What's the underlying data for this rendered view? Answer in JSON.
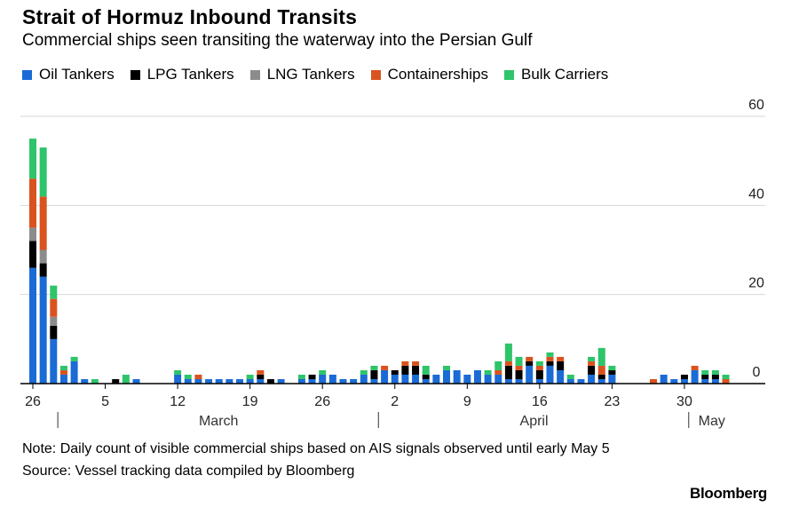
{
  "title": "Strait of Hormuz Inbound Transits",
  "subtitle": "Commercial ships seen transiting the waterway into the Persian Gulf",
  "note": "Note: Daily count of visible commercial ships based on AIS signals observed until early May 5",
  "source": "Source: Vessel tracking data compiled by Bloomberg",
  "brand": "Bloomberg",
  "chart_data": {
    "type": "bar",
    "stacked": true,
    "title": "Strait of Hormuz Inbound Transits",
    "ylim": [
      0,
      60
    ],
    "y_ticks": [
      0,
      20,
      40,
      60
    ],
    "y_axis_side": "right",
    "grid": true,
    "legend_position": "top",
    "x_tick_labels": [
      "26",
      "5",
      "12",
      "19",
      "26",
      "2",
      "9",
      "16",
      "23",
      "30"
    ],
    "x_tick_dates": [
      "2025-02-26",
      "2025-03-05",
      "2025-03-12",
      "2025-03-19",
      "2025-03-26",
      "2025-04-02",
      "2025-04-09",
      "2025-04-16",
      "2025-04-23",
      "2025-04-30"
    ],
    "month_labels": [
      {
        "label": "March",
        "start": "2025-03-01"
      },
      {
        "label": "April",
        "start": "2025-04-01"
      },
      {
        "label": "May",
        "start": "2025-05-01"
      }
    ],
    "categories": [
      "2025-02-26",
      "2025-02-27",
      "2025-02-28",
      "2025-03-01",
      "2025-03-02",
      "2025-03-03",
      "2025-03-04",
      "2025-03-05",
      "2025-03-06",
      "2025-03-07",
      "2025-03-08",
      "2025-03-09",
      "2025-03-10",
      "2025-03-11",
      "2025-03-12",
      "2025-03-13",
      "2025-03-14",
      "2025-03-15",
      "2025-03-16",
      "2025-03-17",
      "2025-03-18",
      "2025-03-19",
      "2025-03-20",
      "2025-03-21",
      "2025-03-22",
      "2025-03-23",
      "2025-03-24",
      "2025-03-25",
      "2025-03-26",
      "2025-03-27",
      "2025-03-28",
      "2025-03-29",
      "2025-03-30",
      "2025-03-31",
      "2025-04-01",
      "2025-04-02",
      "2025-04-03",
      "2025-04-04",
      "2025-04-05",
      "2025-04-06",
      "2025-04-07",
      "2025-04-08",
      "2025-04-09",
      "2025-04-10",
      "2025-04-11",
      "2025-04-12",
      "2025-04-13",
      "2025-04-14",
      "2025-04-15",
      "2025-04-16",
      "2025-04-17",
      "2025-04-18",
      "2025-04-19",
      "2025-04-20",
      "2025-04-21",
      "2025-04-22",
      "2025-04-23",
      "2025-04-24",
      "2025-04-25",
      "2025-04-26",
      "2025-04-27",
      "2025-04-28",
      "2025-04-29",
      "2025-04-30",
      "2025-05-01",
      "2025-05-02",
      "2025-05-03",
      "2025-05-04"
    ],
    "series": [
      {
        "name": "Oil Tankers",
        "color": "#1a6bd6",
        "values": [
          26,
          24,
          10,
          2,
          5,
          1,
          0,
          0,
          0,
          0,
          1,
          0,
          0,
          0,
          2,
          1,
          1,
          1,
          1,
          1,
          1,
          1,
          1,
          0,
          1,
          0,
          1,
          1,
          2,
          2,
          1,
          1,
          2,
          1,
          3,
          2,
          2,
          2,
          1,
          2,
          3,
          3,
          2,
          3,
          2,
          2,
          1,
          1,
          4,
          1,
          4,
          3,
          1,
          1,
          2,
          1,
          2,
          0,
          0,
          0,
          0,
          2,
          1,
          1,
          3,
          1,
          1,
          0
        ]
      },
      {
        "name": "LPG Tankers",
        "color": "#000000",
        "values": [
          6,
          3,
          3,
          0,
          0,
          0,
          0,
          0,
          1,
          0,
          0,
          0,
          0,
          0,
          0,
          0,
          0,
          0,
          0,
          0,
          0,
          0,
          1,
          1,
          0,
          0,
          0,
          1,
          0,
          0,
          0,
          0,
          0,
          2,
          0,
          1,
          2,
          2,
          1,
          0,
          0,
          0,
          0,
          0,
          0,
          0,
          3,
          2,
          1,
          2,
          1,
          2,
          0,
          0,
          2,
          1,
          1,
          0,
          0,
          0,
          0,
          0,
          0,
          1,
          0,
          1,
          1,
          0
        ]
      },
      {
        "name": "LNG Tankers",
        "color": "#8c8c8c",
        "values": [
          3,
          3,
          2,
          0,
          0,
          0,
          0,
          0,
          0,
          0,
          0,
          0,
          0,
          0,
          0,
          0,
          0,
          0,
          0,
          0,
          0,
          0,
          0,
          0,
          0,
          0,
          0,
          0,
          0,
          0,
          0,
          0,
          0,
          0,
          0,
          0,
          0,
          0,
          0,
          0,
          0,
          0,
          0,
          0,
          0,
          0,
          0,
          0,
          0,
          0,
          0,
          0,
          0,
          0,
          0,
          0,
          0,
          0,
          0,
          0,
          0,
          0,
          0,
          0,
          0,
          0,
          0,
          0
        ]
      },
      {
        "name": "Containerships",
        "color": "#d9531e",
        "values": [
          11,
          12,
          4,
          1,
          0,
          0,
          0,
          0,
          0,
          0,
          0,
          0,
          0,
          0,
          0,
          0,
          1,
          0,
          0,
          0,
          0,
          0,
          1,
          0,
          0,
          0,
          0,
          0,
          0,
          0,
          0,
          0,
          0,
          0,
          1,
          0,
          1,
          1,
          0,
          0,
          0,
          0,
          0,
          0,
          0,
          1,
          1,
          1,
          1,
          1,
          1,
          1,
          0,
          0,
          1,
          2,
          0,
          0,
          0,
          0,
          1,
          0,
          0,
          0,
          1,
          0,
          0,
          1
        ]
      },
      {
        "name": "Bulk Carriers",
        "color": "#2ec46a",
        "values": [
          9,
          11,
          3,
          1,
          1,
          0,
          1,
          0,
          0,
          2,
          0,
          0,
          0,
          0,
          1,
          1,
          0,
          0,
          0,
          0,
          0,
          1,
          0,
          0,
          0,
          0,
          1,
          0,
          1,
          0,
          0,
          0,
          1,
          1,
          0,
          0,
          0,
          0,
          2,
          0,
          1,
          0,
          0,
          0,
          1,
          2,
          4,
          2,
          0,
          1,
          1,
          0,
          1,
          0,
          1,
          4,
          1,
          0,
          0,
          0,
          0,
          0,
          0,
          0,
          0,
          1,
          1,
          1
        ]
      }
    ]
  }
}
